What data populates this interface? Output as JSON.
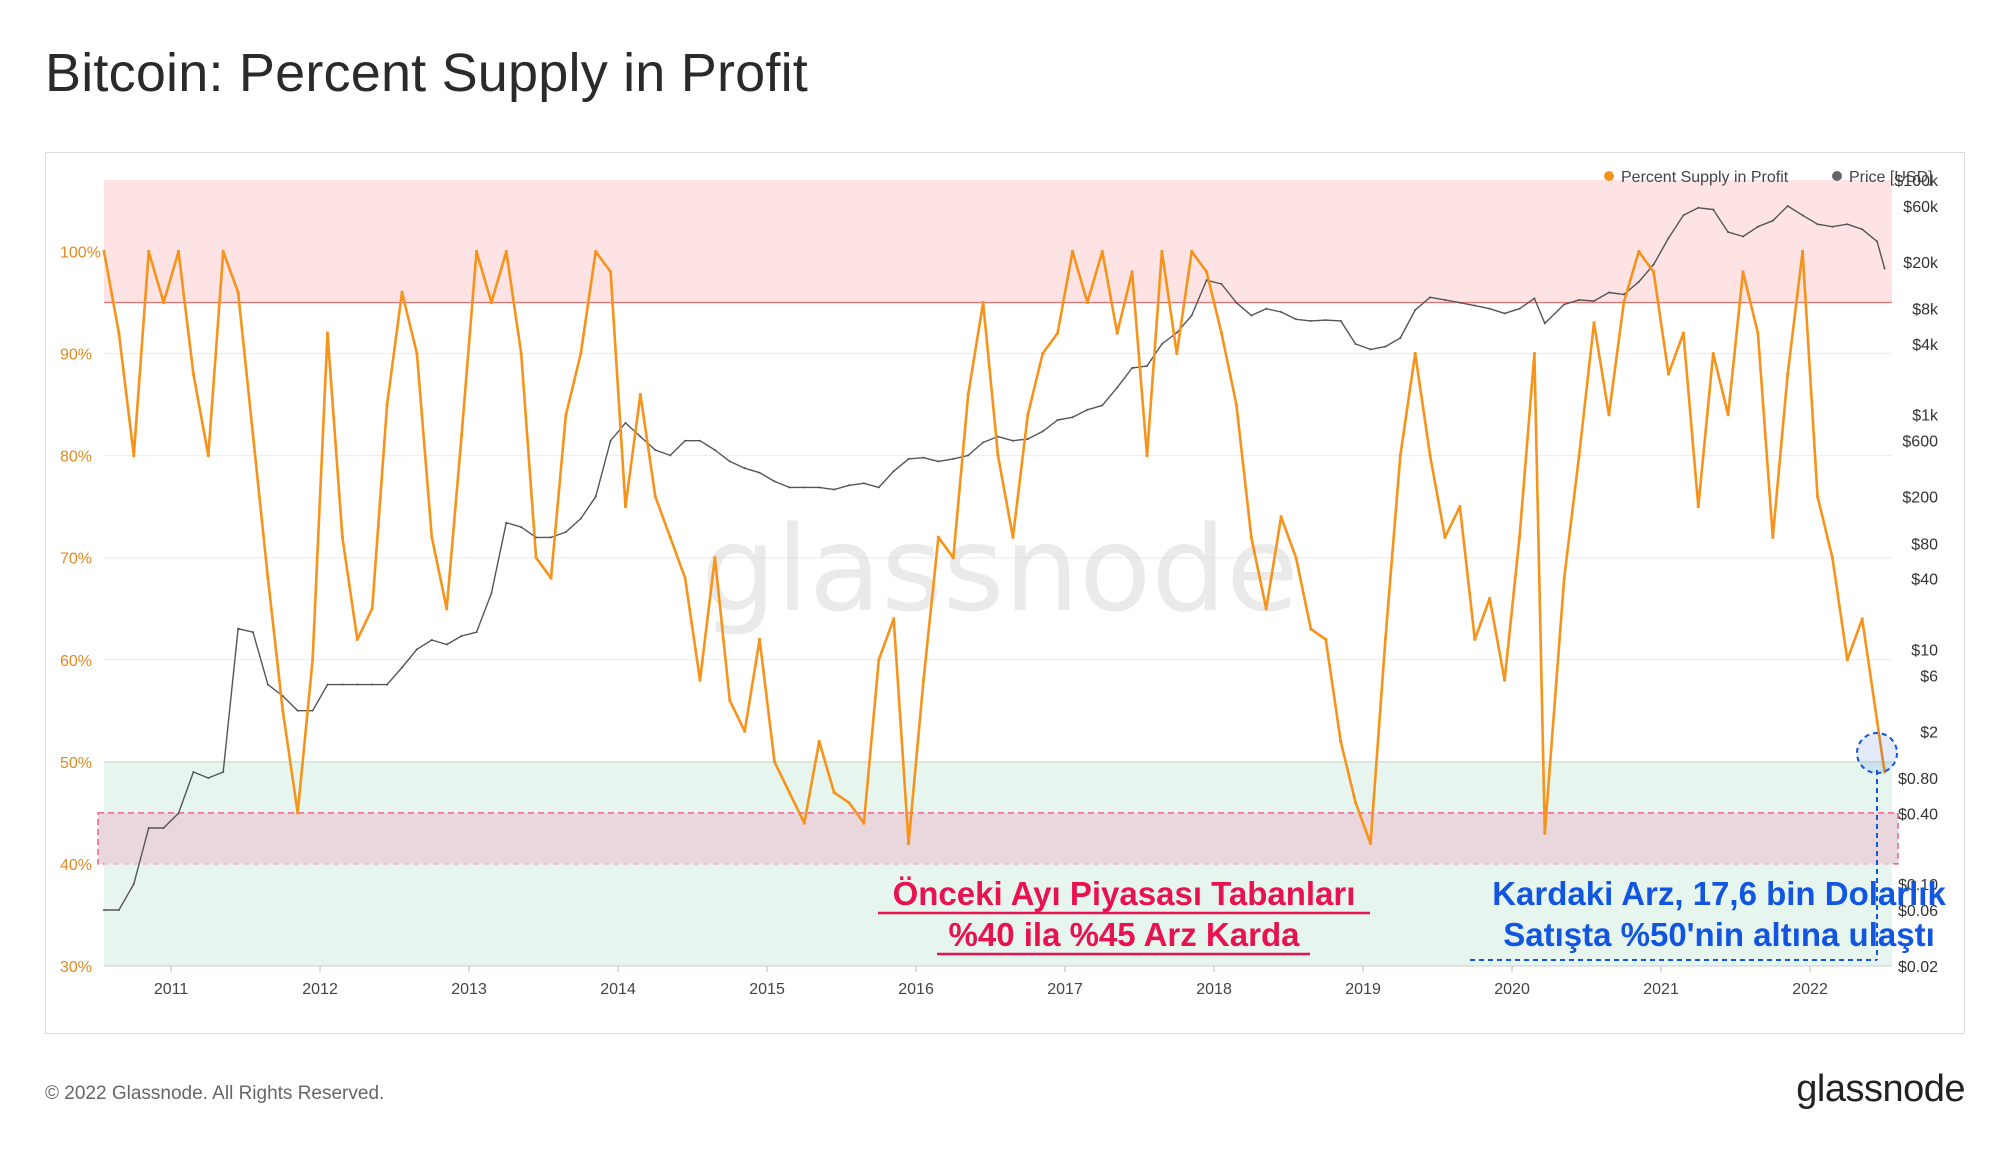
{
  "title": "Bitcoin: Percent Supply in Profit",
  "footer": {
    "copyright": "© 2022 Glassnode. All Rights Reserved.",
    "brand": "glassnode"
  },
  "watermark": "glassnode",
  "legend": [
    {
      "label": "Percent Supply in Profit",
      "color": "#f7931a"
    },
    {
      "label": "Price [USD]",
      "color": "#666666"
    }
  ],
  "annotations": {
    "bear_floor_line1": "Önceki Ayı Piyasası Tabanları",
    "bear_floor_line2": "%40 ila %45 Arz Karda",
    "current_line1": "Kardaki Arz, 17,6 bin Dolarlık",
    "current_line2": "Satışta %50'nin altına ulaştı"
  },
  "colors": {
    "supply": "#f7931a",
    "price": "#555555",
    "top_band": "#fde3e3",
    "bottom_band": "#e6f6ee",
    "floor_band": "#ead6dd",
    "floor_border": "#f06292",
    "annotation_red": "#e8124f",
    "annotation_blue": "#1155e0"
  },
  "chart_data": {
    "type": "line",
    "x_ticks": [
      "2011",
      "2012",
      "2013",
      "2014",
      "2015",
      "2016",
      "2017",
      "2018",
      "2019",
      "2020",
      "2021",
      "2022"
    ],
    "x_range": [
      2010.55,
      2022.55
    ],
    "left_axis": {
      "ticks": [
        "100%",
        "90%",
        "80%",
        "70%",
        "60%",
        "50%",
        "40%",
        "30%"
      ],
      "range": [
        30,
        107
      ]
    },
    "right_axis": {
      "scale": "log",
      "ticks": [
        "$100k",
        "$60k",
        "$20k",
        "$8k",
        "$4k",
        "$1k",
        "$600",
        "$200",
        "$80",
        "$40",
        "$10",
        "$6",
        "$2",
        "$0.80",
        "$0.40",
        "$0.10",
        "$0.06",
        "$0.02"
      ],
      "range": [
        0.02,
        100000
      ]
    },
    "bands": [
      {
        "name": "overheated",
        "from": 95,
        "to": 107
      },
      {
        "name": "undervalued",
        "from": 30,
        "to": 50
      },
      {
        "name": "previous-bear-floors",
        "from": 40,
        "to": 45
      }
    ],
    "series": [
      {
        "name": "Percent Supply in Profit",
        "axis": "left",
        "x": [
          2010.55,
          2010.65,
          2010.75,
          2010.85,
          2010.95,
          2011.05,
          2011.15,
          2011.25,
          2011.35,
          2011.45,
          2011.55,
          2011.65,
          2011.75,
          2011.85,
          2011.95,
          2012.05,
          2012.15,
          2012.25,
          2012.35,
          2012.45,
          2012.55,
          2012.65,
          2012.75,
          2012.85,
          2012.95,
          2013.05,
          2013.15,
          2013.25,
          2013.35,
          2013.45,
          2013.55,
          2013.65,
          2013.75,
          2013.85,
          2013.95,
          2014.05,
          2014.15,
          2014.25,
          2014.35,
          2014.45,
          2014.55,
          2014.65,
          2014.75,
          2014.85,
          2014.95,
          2015.05,
          2015.15,
          2015.25,
          2015.35,
          2015.45,
          2015.55,
          2015.65,
          2015.75,
          2015.85,
          2015.95,
          2016.05,
          2016.15,
          2016.25,
          2016.35,
          2016.45,
          2016.55,
          2016.65,
          2016.75,
          2016.85,
          2016.95,
          2017.05,
          2017.15,
          2017.25,
          2017.35,
          2017.45,
          2017.55,
          2017.65,
          2017.75,
          2017.85,
          2017.95,
          2018.05,
          2018.15,
          2018.25,
          2018.35,
          2018.45,
          2018.55,
          2018.65,
          2018.75,
          2018.85,
          2018.95,
          2019.05,
          2019.15,
          2019.25,
          2019.35,
          2019.45,
          2019.55,
          2019.65,
          2019.75,
          2019.85,
          2019.95,
          2020.05,
          2020.15,
          2020.22,
          2020.35,
          2020.45,
          2020.55,
          2020.65,
          2020.75,
          2020.85,
          2020.95,
          2021.05,
          2021.15,
          2021.25,
          2021.35,
          2021.45,
          2021.55,
          2021.65,
          2021.75,
          2021.85,
          2021.95,
          2022.05,
          2022.15,
          2022.25,
          2022.35,
          2022.45,
          2022.5
        ],
        "values": [
          100,
          92,
          80,
          100,
          95,
          100,
          88,
          80,
          100,
          96,
          82,
          68,
          55,
          45,
          60,
          92,
          72,
          62,
          65,
          85,
          96,
          90,
          72,
          65,
          82,
          100,
          95,
          100,
          90,
          70,
          68,
          84,
          90,
          100,
          98,
          75,
          86,
          76,
          72,
          68,
          58,
          70,
          56,
          53,
          62,
          50,
          47,
          44,
          52,
          47,
          46,
          44,
          60,
          64,
          42,
          58,
          72,
          70,
          86,
          95,
          80,
          72,
          84,
          90,
          92,
          100,
          95,
          100,
          92,
          98,
          80,
          100,
          90,
          100,
          98,
          92,
          85,
          72,
          65,
          74,
          70,
          63,
          62,
          52,
          46,
          42,
          62,
          80,
          90,
          80,
          72,
          75,
          62,
          66,
          58,
          72,
          90,
          43,
          68,
          80,
          93,
          84,
          95,
          100,
          98,
          88,
          92,
          75,
          90,
          84,
          98,
          92,
          72,
          88,
          100,
          76,
          70,
          60,
          64,
          54,
          49
        ],
        "color": "#f7931a"
      },
      {
        "name": "Price [USD]",
        "axis": "right",
        "x": [
          2010.55,
          2010.65,
          2010.75,
          2010.85,
          2010.95,
          2011.05,
          2011.15,
          2011.25,
          2011.35,
          2011.45,
          2011.55,
          2011.65,
          2011.75,
          2011.85,
          2011.95,
          2012.05,
          2012.15,
          2012.25,
          2012.35,
          2012.45,
          2012.55,
          2012.65,
          2012.75,
          2012.85,
          2012.95,
          2013.05,
          2013.15,
          2013.25,
          2013.35,
          2013.45,
          2013.55,
          2013.65,
          2013.75,
          2013.85,
          2013.95,
          2014.05,
          2014.15,
          2014.25,
          2014.35,
          2014.45,
          2014.55,
          2014.65,
          2014.75,
          2014.85,
          2014.95,
          2015.05,
          2015.15,
          2015.25,
          2015.35,
          2015.45,
          2015.55,
          2015.65,
          2015.75,
          2015.85,
          2015.95,
          2016.05,
          2016.15,
          2016.25,
          2016.35,
          2016.45,
          2016.55,
          2016.65,
          2016.75,
          2016.85,
          2016.95,
          2017.05,
          2017.15,
          2017.25,
          2017.35,
          2017.45,
          2017.55,
          2017.65,
          2017.75,
          2017.85,
          2017.95,
          2018.05,
          2018.15,
          2018.25,
          2018.35,
          2018.45,
          2018.55,
          2018.65,
          2018.75,
          2018.85,
          2018.95,
          2019.05,
          2019.15,
          2019.25,
          2019.35,
          2019.45,
          2019.55,
          2019.65,
          2019.75,
          2019.85,
          2019.95,
          2020.05,
          2020.15,
          2020.22,
          2020.35,
          2020.45,
          2020.55,
          2020.65,
          2020.75,
          2020.85,
          2020.95,
          2021.05,
          2021.15,
          2021.25,
          2021.35,
          2021.45,
          2021.55,
          2021.65,
          2021.75,
          2021.85,
          2021.95,
          2022.05,
          2022.15,
          2022.25,
          2022.35,
          2022.45,
          2022.5
        ],
        "values": [
          0.06,
          0.06,
          0.1,
          0.3,
          0.3,
          0.4,
          0.9,
          0.8,
          0.9,
          15,
          14,
          5,
          4,
          3,
          3,
          5,
          5,
          5,
          5,
          5,
          7,
          10,
          12,
          11,
          13,
          14,
          30,
          120,
          110,
          90,
          90,
          100,
          130,
          200,
          600,
          850,
          650,
          500,
          450,
          600,
          600,
          500,
          400,
          350,
          320,
          270,
          240,
          240,
          240,
          230,
          250,
          260,
          240,
          330,
          420,
          430,
          400,
          420,
          450,
          580,
          650,
          600,
          620,
          720,
          900,
          950,
          1100,
          1200,
          1700,
          2500,
          2600,
          4000,
          5000,
          7000,
          14000,
          13000,
          9000,
          7000,
          8000,
          7500,
          6500,
          6300,
          6400,
          6300,
          4000,
          3600,
          3800,
          4500,
          7800,
          10000,
          9500,
          9000,
          8500,
          8000,
          7300,
          8000,
          9800,
          6000,
          8700,
          9500,
          9300,
          11000,
          10600,
          13500,
          19000,
          32000,
          50000,
          58000,
          56000,
          36000,
          33000,
          40000,
          45000,
          60000,
          50000,
          42000,
          40000,
          42000,
          38000,
          30000,
          17600
        ],
        "color": "#555555"
      }
    ]
  }
}
